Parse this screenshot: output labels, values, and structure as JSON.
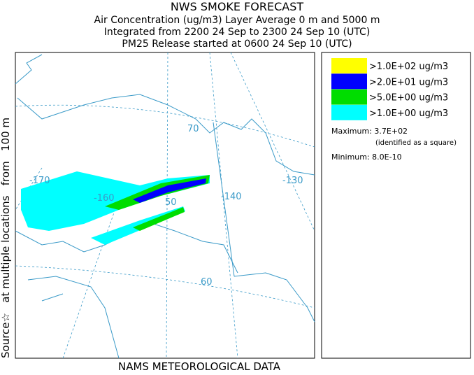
{
  "header": {
    "title": "NWS SMOKE FORECAST",
    "lines": [
      "Air Concentration (ug/m3) Layer Average    0 m and  5000 m",
      "Integrated from 2200 24 Sep to 2300 24 Sep 10 (UTC)",
      "PM25 Release started at 0600 24 Sep 10 (UTC)"
    ]
  },
  "side_label": "Source☆   at multiple locations   from   100 m",
  "footer": "NAMS METEOROLOGICAL DATA",
  "legend": {
    "items": [
      {
        "label": ">1.0E+02 ug/m3",
        "color": "#ffff00"
      },
      {
        "label": ">2.0E+01 ug/m3",
        "color": "#0000ff"
      },
      {
        "label": ">5.0E+00 ug/m3",
        "color": "#00dd00"
      },
      {
        "label": ">1.0E+00 ug/m3",
        "color": "#00ffff"
      }
    ],
    "maximum": "Maximum: 3.7E+02",
    "maximum_note": "(identified as a square)",
    "minimum": "Minimum: 8.0E-10"
  },
  "map": {
    "labels": [
      "-170",
      "-160",
      "50",
      "-140",
      "-130",
      "70",
      "60"
    ]
  }
}
